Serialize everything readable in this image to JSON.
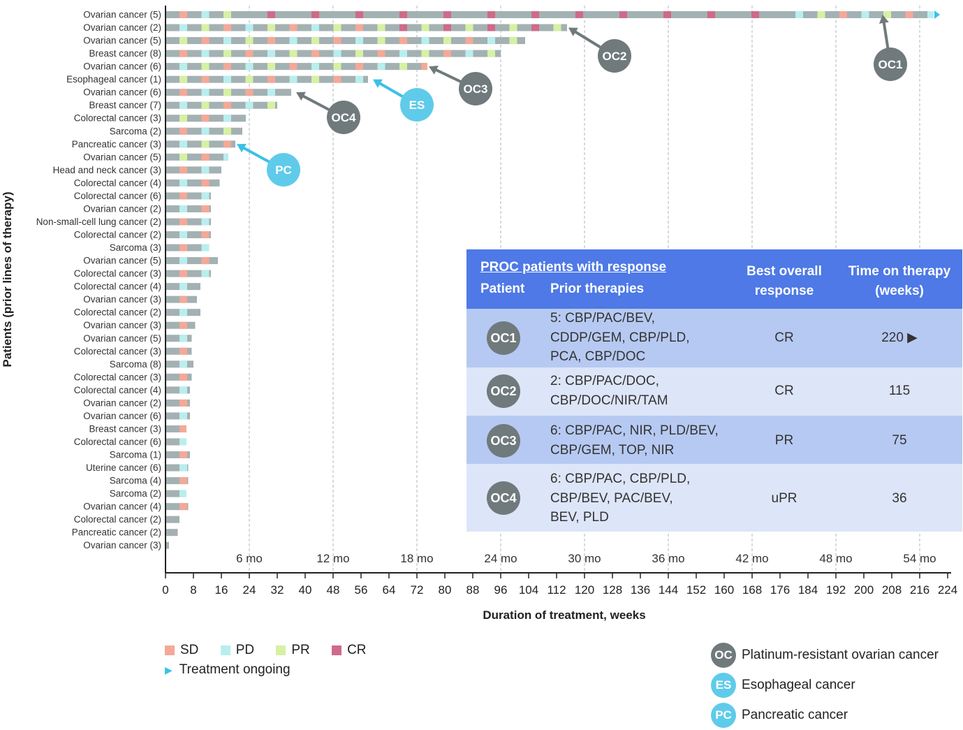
{
  "chart_data": {
    "type": "swimmer",
    "xlabel": "Duration of treatment, weeks",
    "ylabel": "Patients (prior lines of therapy)",
    "xlim": [
      0,
      226
    ],
    "xticks": [
      0,
      8,
      16,
      24,
      32,
      40,
      48,
      56,
      64,
      72,
      80,
      88,
      96,
      104,
      112,
      120,
      128,
      136,
      144,
      152,
      160,
      168,
      176,
      184,
      192,
      200,
      208,
      216,
      224
    ],
    "month_labels": [
      {
        "label": "6 mo",
        "week": 24
      },
      {
        "label": "12 mo",
        "week": 48
      },
      {
        "label": "18 mo",
        "week": 72
      },
      {
        "label": "24 mo",
        "week": 96
      },
      {
        "label": "30 mo",
        "week": 120
      },
      {
        "label": "36 mo",
        "week": 144
      },
      {
        "label": "42 mo",
        "week": 168
      },
      {
        "label": "48 mo",
        "week": 192
      },
      {
        "label": "54 mo",
        "week": 216
      }
    ],
    "patients": [
      {
        "label": "Ovarian cancer (5)",
        "duration": 220,
        "ongoing": true
      },
      {
        "label": "Ovarian cancer (2)",
        "duration": 115
      },
      {
        "label": "Ovarian cancer (5)",
        "duration": 103
      },
      {
        "label": "Breast cancer (8)",
        "duration": 96
      },
      {
        "label": "Ovarian cancer (6)",
        "duration": 75
      },
      {
        "label": "Esophageal cancer (1)",
        "duration": 58
      },
      {
        "label": "Ovarian cancer (6)",
        "duration": 36
      },
      {
        "label": "Breast cancer (7)",
        "duration": 32
      },
      {
        "label": "Colorectal cancer (3)",
        "duration": 23
      },
      {
        "label": "Sarcoma (2)",
        "duration": 22
      },
      {
        "label": "Pancreatic cancer (3)",
        "duration": 20
      },
      {
        "label": "Ovarian cancer (5)",
        "duration": 18
      },
      {
        "label": "Head and neck cancer (3)",
        "duration": 16
      },
      {
        "label": "Colorectal cancer (4)",
        "duration": 15.5
      },
      {
        "label": "Colorectal cancer (6)",
        "duration": 13
      },
      {
        "label": "Ovarian cancer (2)",
        "duration": 13
      },
      {
        "label": "Non-small-cell lung cancer (2)",
        "duration": 13
      },
      {
        "label": "Colorectal cancer (2)",
        "duration": 13
      },
      {
        "label": "Sarcoma (3)",
        "duration": 12.5
      },
      {
        "label": "Ovarian cancer (5)",
        "duration": 15
      },
      {
        "label": "Colorectal cancer (3)",
        "duration": 13
      },
      {
        "label": "Colorectal cancer (4)",
        "duration": 10
      },
      {
        "label": "Ovarian cancer (3)",
        "duration": 9
      },
      {
        "label": "Colorectal cancer (2)",
        "duration": 10
      },
      {
        "label": "Ovarian cancer (3)",
        "duration": 8.5
      },
      {
        "label": "Ovarian cancer (5)",
        "duration": 7.5
      },
      {
        "label": "Colorectal cancer (3)",
        "duration": 7.5
      },
      {
        "label": "Sarcoma (8)",
        "duration": 8
      },
      {
        "label": "Colorectal cancer (3)",
        "duration": 7.5
      },
      {
        "label": "Colorectal cancer (4)",
        "duration": 7
      },
      {
        "label": "Ovarian cancer (2)",
        "duration": 7
      },
      {
        "label": "Ovarian cancer (6)",
        "duration": 7
      },
      {
        "label": "Breast cancer (3)",
        "duration": 6
      },
      {
        "label": "Colorectal cancer (6)",
        "duration": 6
      },
      {
        "label": "Sarcoma (1)",
        "duration": 7
      },
      {
        "label": "Uterine cancer (6)",
        "duration": 6.5
      },
      {
        "label": "Sarcoma (4)",
        "duration": 6.5
      },
      {
        "label": "Sarcoma (2)",
        "duration": 6
      },
      {
        "label": "Ovarian cancer (4)",
        "duration": 6.5
      },
      {
        "label": "Colorectal cancer (2)",
        "duration": 4
      },
      {
        "label": "Pancreatic cancer (2)",
        "duration": 3.5
      },
      {
        "label": "Ovarian cancer (3)",
        "duration": 1
      }
    ],
    "callouts": [
      {
        "label": "OC1",
        "row": 0,
        "week": 205,
        "type": "OC"
      },
      {
        "label": "OC2",
        "row": 1,
        "week": 115,
        "type": "OC"
      },
      {
        "label": "OC3",
        "row": 4,
        "week": 75,
        "type": "OC"
      },
      {
        "label": "OC4",
        "row": 6,
        "week": 37,
        "type": "OC"
      },
      {
        "label": "ES",
        "row": 5,
        "week": 59,
        "type": "ES"
      },
      {
        "label": "PC",
        "row": 10,
        "week": 20,
        "type": "PC"
      }
    ],
    "legend": [
      {
        "label": "SD",
        "color": "#f5a898"
      },
      {
        "label": "PD",
        "color": "#b9eeee"
      },
      {
        "label": "PR",
        "color": "#d6f1a3"
      },
      {
        "label": "CR",
        "color": "#cf6a8a"
      }
    ],
    "legend_ongoing": "Treatment ongoing"
  },
  "colors": {
    "bar": "#a3b1b3",
    "sd": "#f5a898",
    "pd": "#b9eeee",
    "pr": "#d6f1a3",
    "cr": "#cf6a8a",
    "oc": "#707a7c",
    "es": "#5fcbea",
    "arrow_blue": "#3cc0e6",
    "table_head": "#4e79e6",
    "row_dark": "#b6c9f2",
    "row_light": "#dde5f8"
  },
  "table": {
    "title": "PROC patients with response",
    "col_patient": "Patient",
    "col_prior": "Prior therapies",
    "col_best_1": "Best overall",
    "col_best_2": "response",
    "col_time_1": "Time on therapy",
    "col_time_2": "(weeks)",
    "rows": [
      {
        "patient": "OC1",
        "prior": [
          "5: CBP/PAC/BEV,",
          "CDDP/GEM, CBP/PLD,",
          "PCA, CBP/DOC"
        ],
        "best": "CR",
        "time": "220 ▶"
      },
      {
        "patient": "OC2",
        "prior": [
          "2: CBP/PAC/DOC,",
          "CBP/DOC/NIR/TAM"
        ],
        "best": "CR",
        "time": "115"
      },
      {
        "patient": "OC3",
        "prior": [
          "6: CBP/PAC, NIR, PLD/BEV,",
          "CBP/GEM, TOP, NIR"
        ],
        "best": "PR",
        "time": "75"
      },
      {
        "patient": "OC4",
        "prior": [
          "6: CBP/PAC, CBP/PLD,",
          "CBP/BEV, PAC/BEV,",
          "BEV, PLD"
        ],
        "best": "uPR",
        "time": "36"
      }
    ]
  },
  "legend_types": [
    {
      "abbr": "OC",
      "label": "Platinum-resistant ovarian cancer",
      "color": "#707a7c"
    },
    {
      "abbr": "ES",
      "label": "Esophageal cancer",
      "color": "#5fcbea"
    },
    {
      "abbr": "PC",
      "label": "Pancreatic cancer",
      "color": "#5fcbea"
    }
  ]
}
